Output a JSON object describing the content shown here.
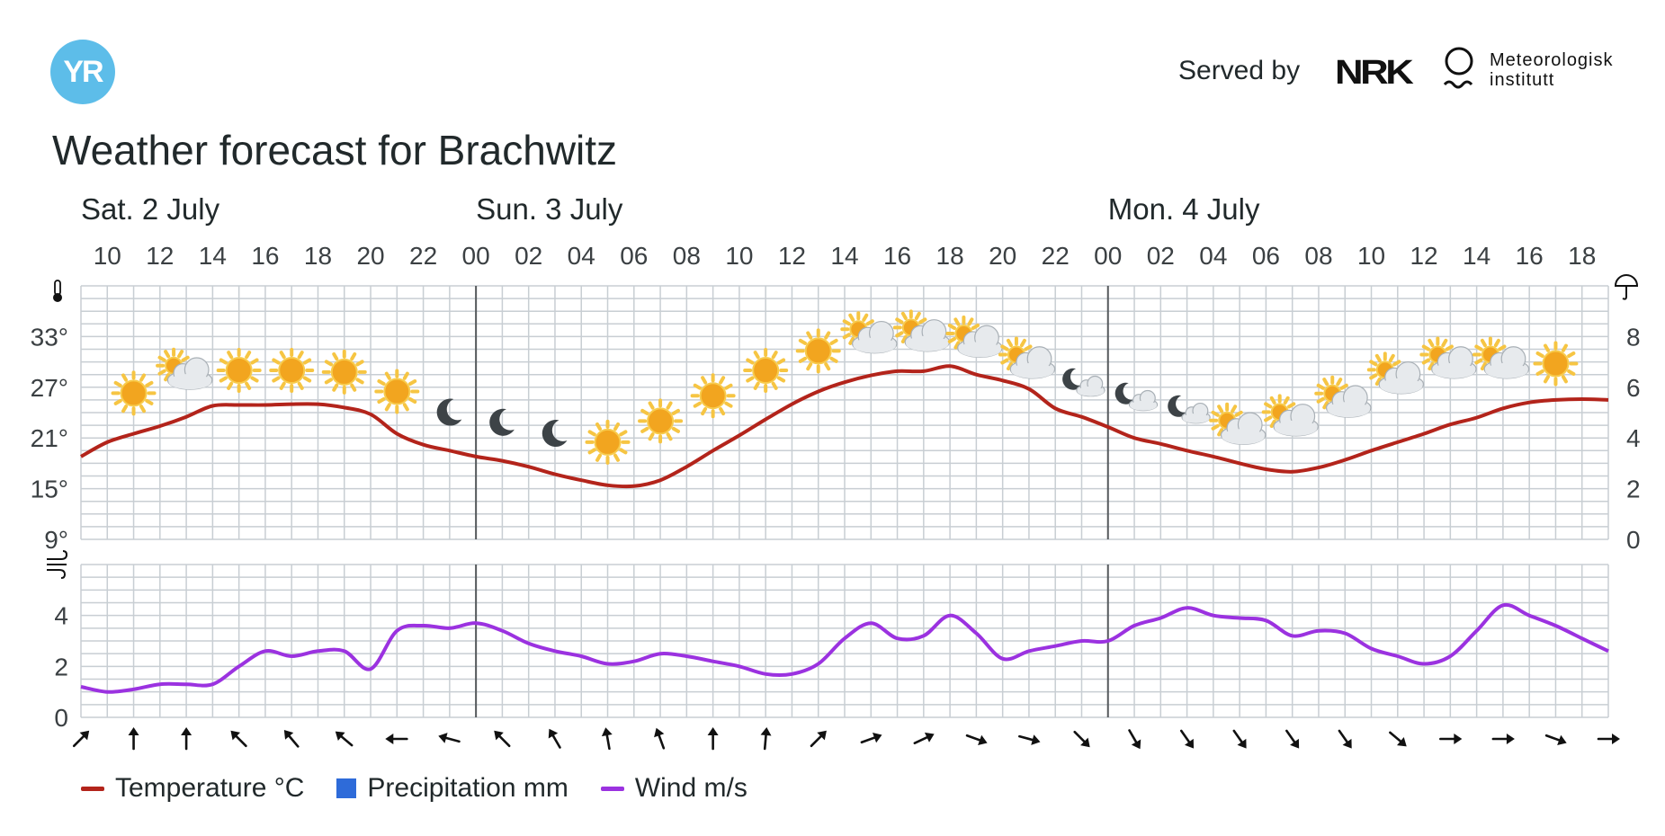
{
  "header": {
    "logo_text": "YR",
    "served_by": "Served by",
    "nrk_logo": "NRK",
    "met_logo_line1": "Meteorologisk",
    "met_logo_line2": "institutt"
  },
  "title": "Weather forecast for Brachwitz",
  "legend": {
    "temperature": "Temperature °C",
    "precipitation": "Precipitation mm",
    "wind": "Wind m/s"
  },
  "colors": {
    "temperature": "#b3241b",
    "precipitation": "#2e6bd9",
    "wind": "#9b32e0",
    "grid": "#c8ced3",
    "sun": "#f6b421",
    "moon": "#3d4347",
    "cloud": "#d9dde1"
  },
  "chart_data": {
    "type": "line",
    "days": [
      {
        "label": "Sat. 2 July",
        "hour": 9
      },
      {
        "label": "Sun. 3 July",
        "hour": 24
      },
      {
        "label": "Mon. 4 July",
        "hour": 48
      }
    ],
    "hour_ticks": [
      "10",
      "12",
      "14",
      "16",
      "18",
      "20",
      "22",
      "00",
      "02",
      "04",
      "06",
      "08",
      "10",
      "12",
      "14",
      "16",
      "18",
      "20",
      "22",
      "00",
      "02",
      "04",
      "06",
      "08",
      "10",
      "12",
      "14",
      "16",
      "18"
    ],
    "hour_range": [
      9,
      67
    ],
    "day_separators": [
      24,
      48
    ],
    "temperature": {
      "y_ticks": [
        "33°",
        "27°",
        "21°",
        "15°",
        "9°"
      ],
      "ylim": [
        9,
        39
      ],
      "x": [
        9,
        10,
        11,
        12,
        13,
        14,
        15,
        16,
        17,
        18,
        19,
        20,
        21,
        22,
        23,
        24,
        25,
        26,
        27,
        28,
        29,
        30,
        31,
        32,
        33,
        34,
        35,
        36,
        37,
        38,
        39,
        40,
        41,
        42,
        43,
        44,
        45,
        46,
        47,
        48,
        49,
        50,
        51,
        52,
        53,
        54,
        55,
        56,
        57,
        58,
        59,
        60,
        61,
        62,
        63,
        64,
        65,
        66,
        67
      ],
      "values": [
        18.8,
        20.5,
        21.5,
        22.4,
        23.5,
        24.8,
        24.9,
        24.9,
        25.0,
        25.0,
        24.6,
        23.8,
        21.5,
        20.2,
        19.5,
        18.8,
        18.3,
        17.6,
        16.7,
        16.0,
        15.4,
        15.3,
        16.0,
        17.6,
        19.5,
        21.3,
        23.2,
        25.0,
        26.5,
        27.6,
        28.4,
        28.9,
        28.9,
        29.5,
        28.5,
        27.8,
        26.8,
        24.5,
        23.5,
        22.3,
        21.0,
        20.3,
        19.5,
        18.8,
        18.0,
        17.3,
        17.0,
        17.5,
        18.4,
        19.5,
        20.5,
        21.5,
        22.6,
        23.4,
        24.5,
        25.2,
        25.5,
        25.6,
        25.5
      ]
    },
    "precipitation": {
      "y_ticks": [
        "8",
        "6",
        "4",
        "2",
        "0"
      ],
      "ylim": [
        0,
        10
      ],
      "values": []
    },
    "wind": {
      "y_ticks": [
        "4",
        "2",
        "0"
      ],
      "ylim": [
        0,
        6
      ],
      "x": [
        9,
        10,
        11,
        12,
        13,
        14,
        15,
        16,
        17,
        18,
        19,
        20,
        21,
        22,
        23,
        24,
        25,
        26,
        27,
        28,
        29,
        30,
        31,
        32,
        33,
        34,
        35,
        36,
        37,
        38,
        39,
        40,
        41,
        42,
        43,
        44,
        45,
        46,
        47,
        48,
        49,
        50,
        51,
        52,
        53,
        54,
        55,
        56,
        57,
        58,
        59,
        60,
        61,
        62,
        63,
        64,
        65,
        66,
        67
      ],
      "values": [
        1.2,
        1.0,
        1.1,
        1.3,
        1.3,
        1.3,
        2.0,
        2.6,
        2.4,
        2.6,
        2.6,
        1.9,
        3.4,
        3.6,
        3.5,
        3.7,
        3.4,
        2.9,
        2.6,
        2.4,
        2.1,
        2.2,
        2.5,
        2.4,
        2.2,
        2.0,
        1.7,
        1.7,
        2.1,
        3.1,
        3.7,
        3.1,
        3.2,
        4.0,
        3.3,
        2.3,
        2.6,
        2.8,
        3.0,
        3.0,
        3.6,
        3.9,
        4.3,
        4.0,
        3.9,
        3.8,
        3.2,
        3.4,
        3.3,
        2.7,
        2.4,
        2.1,
        2.4,
        3.4,
        4.4,
        4.0,
        3.6,
        3.1,
        2.6
      ],
      "direction_arrows": [
        {
          "hour": 9,
          "rot": 45
        },
        {
          "hour": 11,
          "rot": 0
        },
        {
          "hour": 13,
          "rot": 0
        },
        {
          "hour": 15,
          "rot": -45
        },
        {
          "hour": 17,
          "rot": -40
        },
        {
          "hour": 19,
          "rot": -50
        },
        {
          "hour": 21,
          "rot": -90
        },
        {
          "hour": 23,
          "rot": -75
        },
        {
          "hour": 25,
          "rot": -45
        },
        {
          "hour": 27,
          "rot": -30
        },
        {
          "hour": 29,
          "rot": -10
        },
        {
          "hour": 31,
          "rot": -20
        },
        {
          "hour": 33,
          "rot": 0
        },
        {
          "hour": 35,
          "rot": 5
        },
        {
          "hour": 37,
          "rot": 45
        },
        {
          "hour": 39,
          "rot": 70
        },
        {
          "hour": 41,
          "rot": 65
        },
        {
          "hour": 43,
          "rot": 110
        },
        {
          "hour": 45,
          "rot": 105
        },
        {
          "hour": 47,
          "rot": 135
        },
        {
          "hour": 49,
          "rot": 150
        },
        {
          "hour": 51,
          "rot": 145
        },
        {
          "hour": 53,
          "rot": 145
        },
        {
          "hour": 55,
          "rot": 145
        },
        {
          "hour": 57,
          "rot": 145
        },
        {
          "hour": 59,
          "rot": 130
        },
        {
          "hour": 61,
          "rot": 90
        },
        {
          "hour": 63,
          "rot": 90
        },
        {
          "hour": 65,
          "rot": 110
        },
        {
          "hour": 67,
          "rot": 90
        }
      ]
    },
    "weather_symbols": [
      {
        "hour": 11,
        "temp": 26.3,
        "type": "clear-day"
      },
      {
        "hour": 13,
        "temp": 28.5,
        "type": "partly-cloudy-day"
      },
      {
        "hour": 15,
        "temp": 29.0,
        "type": "clear-day"
      },
      {
        "hour": 17,
        "temp": 29.0,
        "type": "clear-day"
      },
      {
        "hour": 19,
        "temp": 28.8,
        "type": "clear-day"
      },
      {
        "hour": 21,
        "temp": 26.5,
        "type": "clear-day"
      },
      {
        "hour": 23,
        "temp": 24.0,
        "type": "clear-night"
      },
      {
        "hour": 25,
        "temp": 22.8,
        "type": "clear-night"
      },
      {
        "hour": 27,
        "temp": 21.5,
        "type": "clear-night"
      },
      {
        "hour": 29,
        "temp": 20.5,
        "type": "clear-day"
      },
      {
        "hour": 31,
        "temp": 23.0,
        "type": "clear-day"
      },
      {
        "hour": 33,
        "temp": 26.0,
        "type": "clear-day"
      },
      {
        "hour": 35,
        "temp": 29.0,
        "type": "clear-day"
      },
      {
        "hour": 37,
        "temp": 31.3,
        "type": "clear-day"
      },
      {
        "hour": 39,
        "temp": 32.8,
        "type": "partly-cloudy-day"
      },
      {
        "hour": 41,
        "temp": 33.0,
        "type": "partly-cloudy-day"
      },
      {
        "hour": 43,
        "temp": 32.3,
        "type": "partly-cloudy-day"
      },
      {
        "hour": 45,
        "temp": 29.8,
        "type": "partly-cloudy-day"
      },
      {
        "hour": 47,
        "temp": 27.5,
        "type": "partly-cloudy-night"
      },
      {
        "hour": 49,
        "temp": 25.8,
        "type": "partly-cloudy-night"
      },
      {
        "hour": 51,
        "temp": 24.3,
        "type": "partly-cloudy-night"
      },
      {
        "hour": 53,
        "temp": 22.0,
        "type": "partly-cloudy-day"
      },
      {
        "hour": 55,
        "temp": 23.0,
        "type": "partly-cloudy-day"
      },
      {
        "hour": 57,
        "temp": 25.2,
        "type": "partly-cloudy-day"
      },
      {
        "hour": 59,
        "temp": 28.0,
        "type": "partly-cloudy-day"
      },
      {
        "hour": 61,
        "temp": 29.8,
        "type": "partly-cloudy-day"
      },
      {
        "hour": 63,
        "temp": 29.8,
        "type": "partly-cloudy-day"
      },
      {
        "hour": 65,
        "temp": 29.8,
        "type": "clear-day"
      }
    ]
  }
}
